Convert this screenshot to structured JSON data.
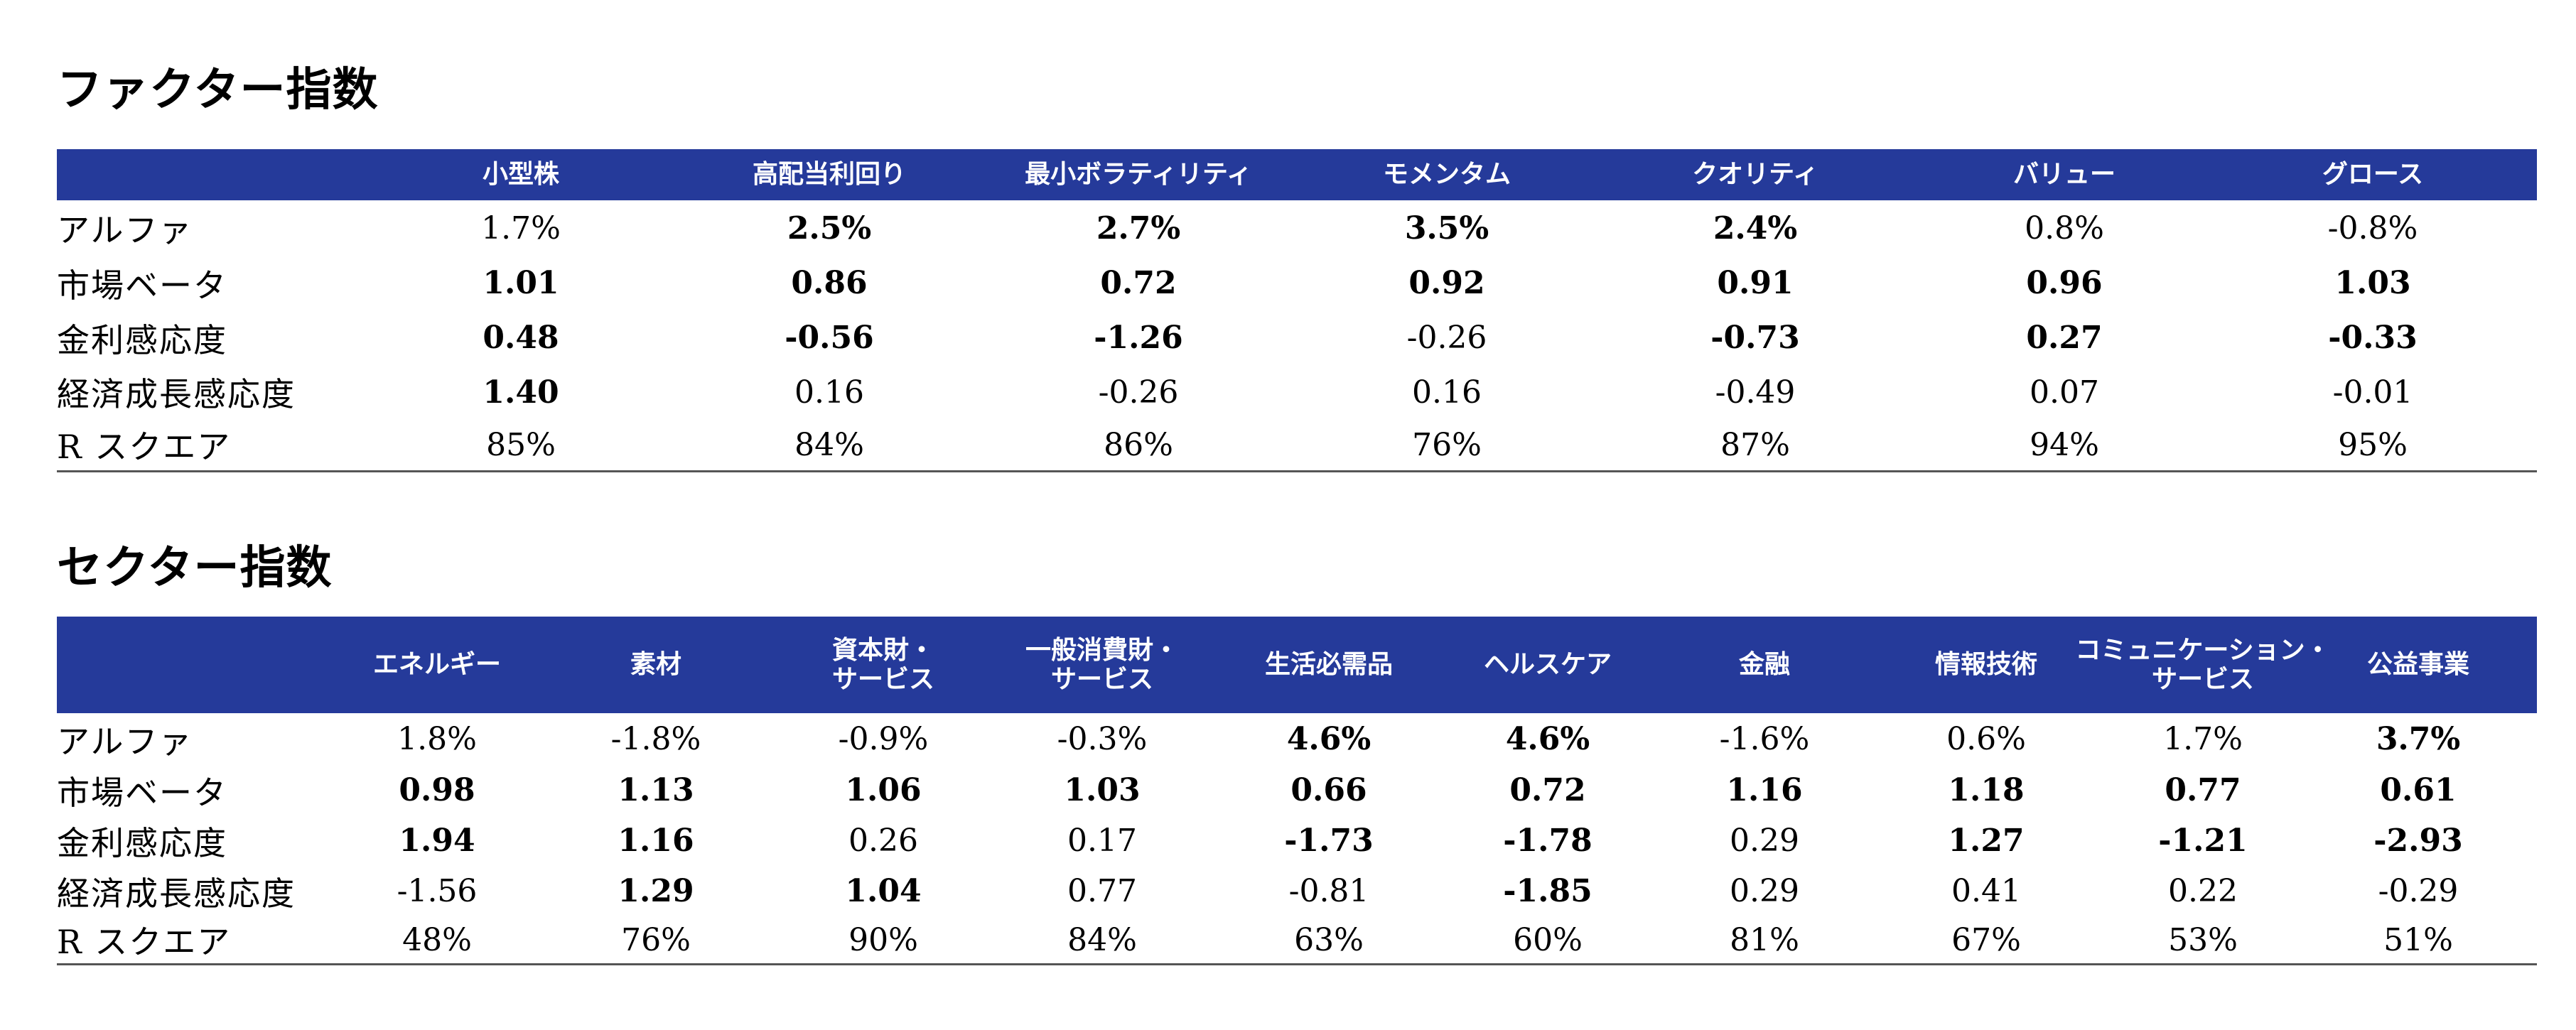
{
  "factor": {
    "title": "ファクター指数",
    "headers": [
      "小型株",
      "高配当利回り",
      "最小ボラティリティ",
      "モメンタム",
      "クオリティ",
      "バリュー",
      "グロース"
    ],
    "rows": [
      {
        "label": "アルファ",
        "values": [
          "1.7%",
          "2.5%",
          "2.7%",
          "3.5%",
          "2.4%",
          "0.8%",
          "-0.8%"
        ],
        "bold": [
          false,
          true,
          true,
          true,
          true,
          false,
          false
        ]
      },
      {
        "label": "市場ベータ",
        "values": [
          "1.01",
          "0.86",
          "0.72",
          "0.92",
          "0.91",
          "0.96",
          "1.03"
        ],
        "bold": [
          true,
          true,
          true,
          true,
          true,
          true,
          true
        ]
      },
      {
        "label": "金利感応度",
        "values": [
          "0.48",
          "-0.56",
          "-1.26",
          "-0.26",
          "-0.73",
          "0.27",
          "-0.33"
        ],
        "bold": [
          true,
          true,
          true,
          false,
          true,
          true,
          true
        ]
      },
      {
        "label": "経済成長感応度",
        "values": [
          "1.40",
          "0.16",
          "-0.26",
          "0.16",
          "-0.49",
          "0.07",
          "-0.01"
        ],
        "bold": [
          true,
          false,
          false,
          false,
          false,
          false,
          false
        ]
      },
      {
        "label": "R  スクエア",
        "values": [
          "85%",
          "84%",
          "86%",
          "76%",
          "87%",
          "94%",
          "95%"
        ],
        "bold": [
          false,
          false,
          false,
          false,
          false,
          false,
          false
        ]
      }
    ]
  },
  "sector": {
    "title": "セクター指数",
    "headers": [
      "エネルギー",
      "素材",
      "資本財・\nサービス",
      "一般消費財・\nサービス",
      "生活必需品",
      "ヘルスケア",
      "金融",
      "情報技術",
      "コミュニケーション・\nサービス",
      "公益事業"
    ],
    "rows": [
      {
        "label": "アルファ",
        "values": [
          "1.8%",
          "-1.8%",
          "-0.9%",
          "-0.3%",
          "4.6%",
          "4.6%",
          "-1.6%",
          "0.6%",
          "1.7%",
          "3.7%"
        ],
        "bold": [
          false,
          false,
          false,
          false,
          true,
          true,
          false,
          false,
          false,
          true
        ]
      },
      {
        "label": "市場ベータ",
        "values": [
          "0.98",
          "1.13",
          "1.06",
          "1.03",
          "0.66",
          "0.72",
          "1.16",
          "1.18",
          "0.77",
          "0.61"
        ],
        "bold": [
          true,
          true,
          true,
          true,
          true,
          true,
          true,
          true,
          true,
          true
        ]
      },
      {
        "label": "金利感応度",
        "values": [
          "1.94",
          "1.16",
          "0.26",
          "0.17",
          "-1.73",
          "-1.78",
          "0.29",
          "1.27",
          "-1.21",
          "-2.93"
        ],
        "bold": [
          true,
          true,
          false,
          false,
          true,
          true,
          false,
          true,
          true,
          true
        ]
      },
      {
        "label": "経済成長感応度",
        "values": [
          "-1.56",
          "1.29",
          "1.04",
          "0.77",
          "-0.81",
          "-1.85",
          "0.29",
          "0.41",
          "0.22",
          "-0.29"
        ],
        "bold": [
          false,
          true,
          true,
          false,
          false,
          true,
          false,
          false,
          false,
          false
        ]
      },
      {
        "label": "R  スクエア",
        "values": [
          "48%",
          "76%",
          "90%",
          "84%",
          "63%",
          "60%",
          "81%",
          "67%",
          "53%",
          "51%"
        ],
        "bold": [
          false,
          false,
          false,
          false,
          false,
          false,
          false,
          false,
          false,
          false
        ]
      }
    ]
  }
}
